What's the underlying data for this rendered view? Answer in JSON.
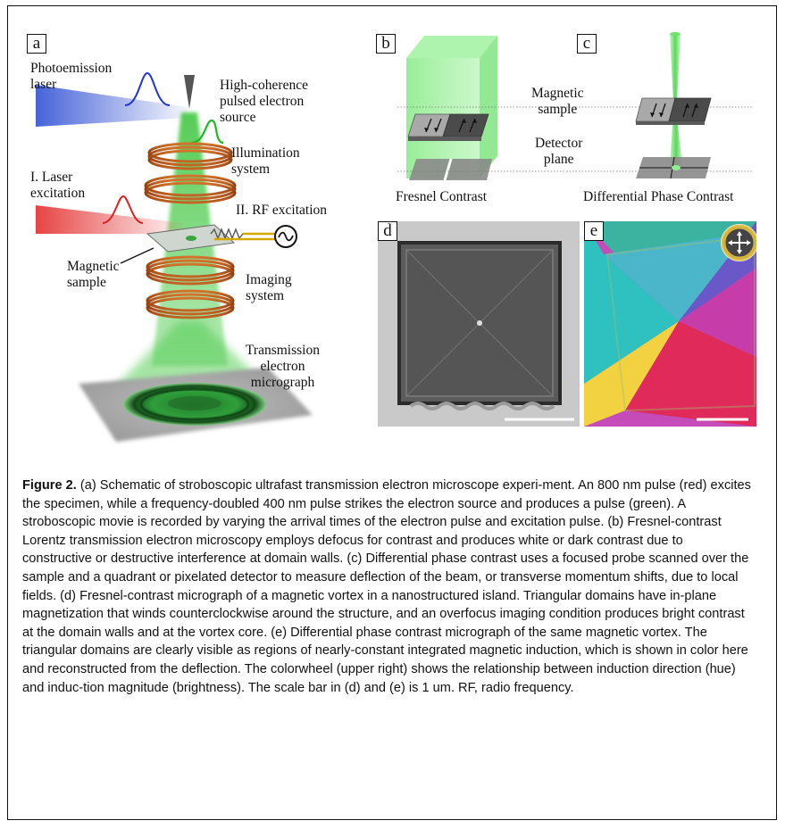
{
  "panels": {
    "a": {
      "letter": "a",
      "labels": {
        "photoemission_laser": [
          "Photoemission",
          "laser"
        ],
        "electron_source": [
          "High-coherence",
          "pulsed electron",
          "source"
        ],
        "illumination": [
          "Illumination",
          "system"
        ],
        "laser_excitation": [
          "I. Laser",
          "excitation"
        ],
        "rf_excitation": "II. RF excitation",
        "magnetic_sample": [
          "Magnetic",
          "sample"
        ],
        "imaging": [
          "Imaging",
          "system"
        ],
        "micrograph": [
          "Transmission",
          "electron",
          "micrograph"
        ]
      }
    },
    "b": {
      "letter": "b",
      "caption": "Fresnel Contrast"
    },
    "c": {
      "letter": "c",
      "caption": "Differential Phase Contrast",
      "magnetic_sample": [
        "Magnetic",
        "sample"
      ],
      "detector_plane": [
        "Detector",
        "plane"
      ]
    },
    "d": {
      "letter": "d"
    },
    "e": {
      "letter": "e"
    }
  },
  "caption": {
    "figure_label": "Figure 2.",
    "text": " (a) Schematic of stroboscopic ultrafast transmission electron microscope experi-ment. An 800 nm pulse (red) excites the specimen, while a frequency-doubled 400 nm pulse strikes the electron source and produces a pulse (green). A stroboscopic movie is recorded by varying the arrival times of the electron pulse and excitation pulse. (b) Fresnel-contrast Lorentz transmission electron microscopy employs defocus for contrast and produces white or dark contrast due to constructive or destructive interference at domain walls. (c) Differential phase contrast uses a focused probe scanned over the sample and a quadrant or pixelated detector to measure deflection of the beam, or transverse momentum shifts, due to local fields. (d) Fresnel-contrast micrograph of a magnetic vortex in a nanostructured island. Triangular domains have in-plane magnetization that winds counterclockwise around the structure, and an overfocus imaging condition produces bright contrast at the domain walls and at the vortex core. (e) Differential phase contrast micrograph of the same magnetic vortex. The triangular domains are clearly visible as regions of nearly-constant integrated magnetic induction, which is shown in color here and reconstructed from the deflection. The colorwheel (upper right) shows the relationship between induction direction (hue) and induc-tion magnitude (brightness). The scale bar in (d) and (e) is 1 um. RF, radio frequency."
  },
  "colors": {
    "electron_green": "#37c437",
    "laser_blue": "#3d5bd6",
    "laser_red": "#e53a3a",
    "coil_copper": "#b5581c"
  }
}
